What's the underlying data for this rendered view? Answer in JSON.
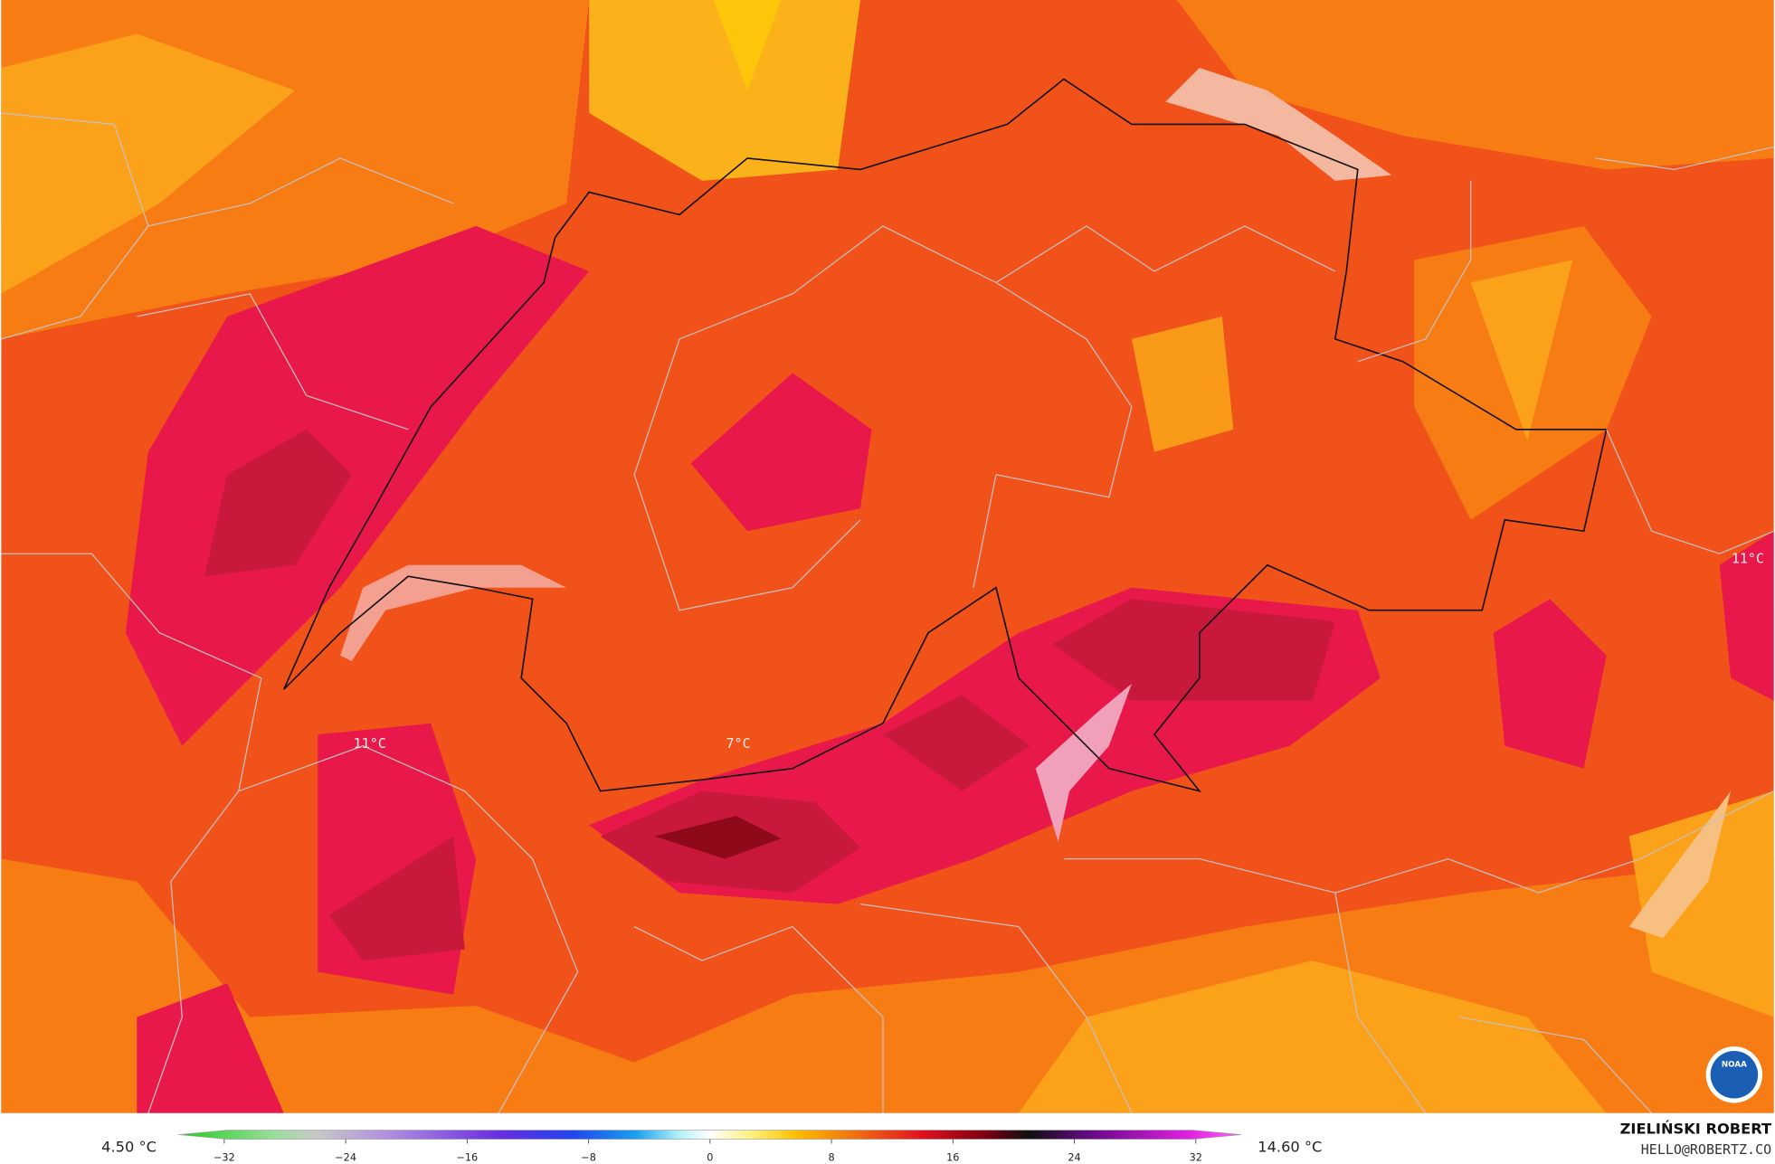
{
  "map": {
    "labels": [
      "11°C",
      "7°C",
      "11°C"
    ]
  },
  "colorbar": {
    "min_label": "4.50 °C",
    "max_label": "14.60 °C",
    "range": [
      -35,
      35
    ],
    "ticks": [
      {
        "value": -32,
        "label": "−32"
      },
      {
        "value": -24,
        "label": "−24"
      },
      {
        "value": -16,
        "label": "−16"
      },
      {
        "value": -8,
        "label": "−8"
      },
      0,
      8,
      16,
      24,
      32
    ]
  },
  "credits": {
    "author": "ZIELIŃSKI ROBERT",
    "email": "HELLO@ROBERTZ.CO",
    "logo": "NOAA"
  }
}
